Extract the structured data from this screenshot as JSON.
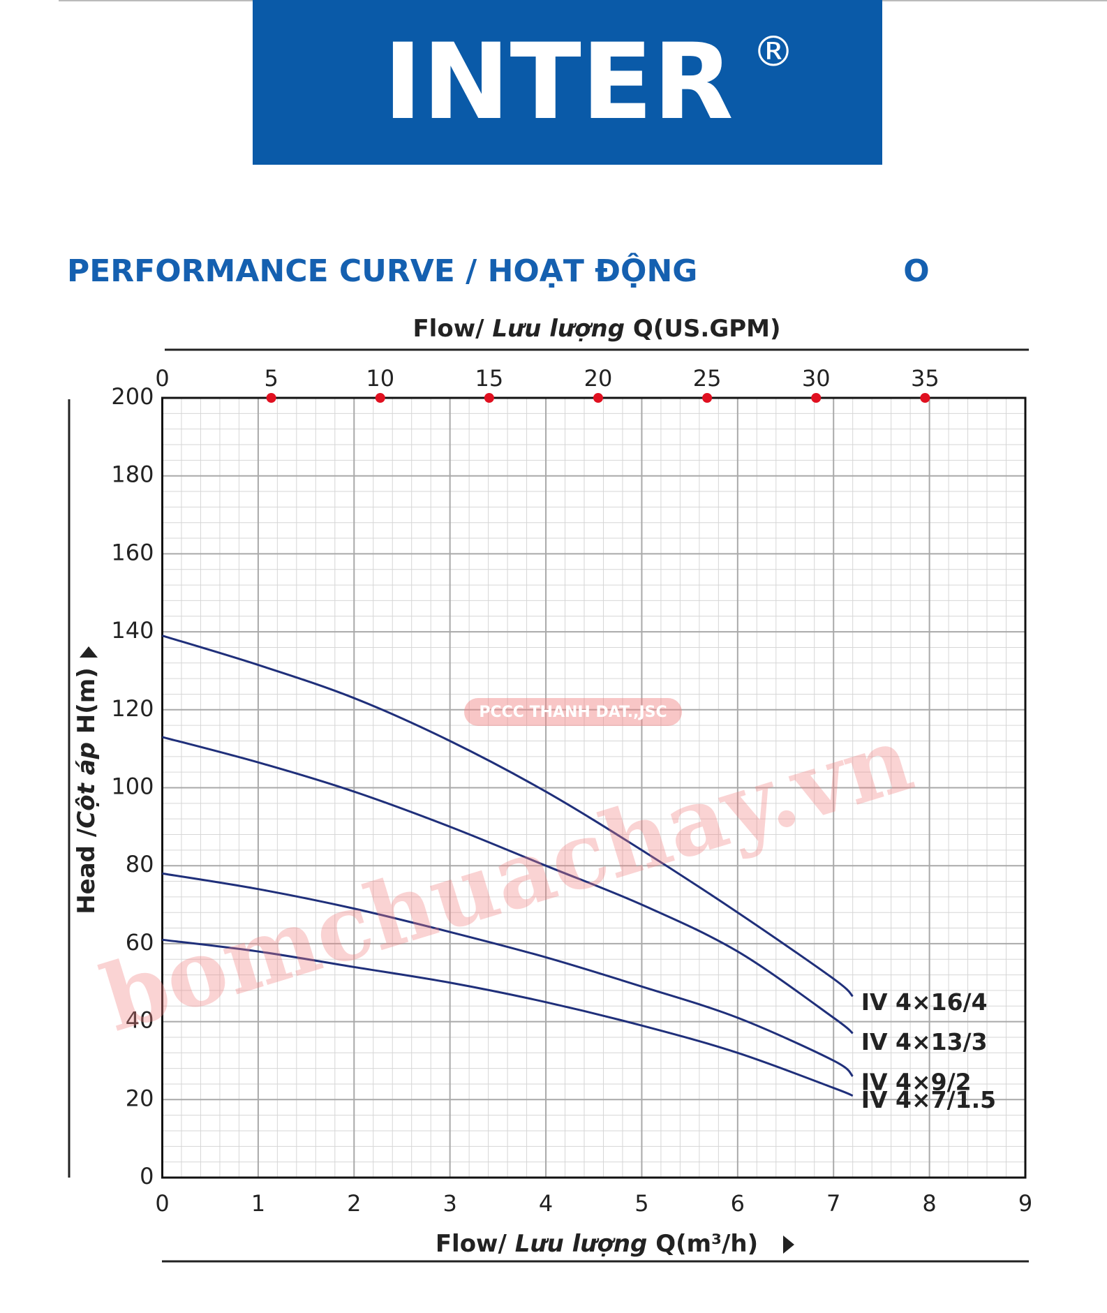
{
  "brand": "INTER",
  "brand_mark": "®",
  "chart_data": {
    "type": "line",
    "title": "PERFORMANCE CURVE  / HOẠT ĐỘNG",
    "title_right": "O",
    "x2label": [
      "Flow/ ",
      "Lưu lượng",
      " Q(US.GPM)"
    ],
    "xlabel": [
      "Flow/ ",
      "Lưu lượng",
      " Q(m³/h)"
    ],
    "ylabel": [
      "Head /",
      "Cột áp",
      " H(m)"
    ],
    "x": [
      0,
      1,
      2,
      3,
      4,
      5,
      6,
      7,
      7.2
    ],
    "series": [
      {
        "name": "IV 4×16/4",
        "color": "#1f2f7a",
        "values": [
          139,
          131.5,
          123,
          112,
          99,
          84,
          68,
          51,
          46.5
        ]
      },
      {
        "name": "IV 4×13/3",
        "color": "#1f2f7a",
        "values": [
          113,
          106.5,
          99,
          90,
          80,
          70,
          58,
          41,
          37
        ]
      },
      {
        "name": "IV 4×9/2",
        "color": "#1f2f7a",
        "values": [
          78,
          74,
          69,
          63,
          56.5,
          49,
          41,
          30,
          26
        ]
      },
      {
        "name": "IV 4×7/1.5",
        "color": "#1f2f7a",
        "values": [
          61,
          58,
          54,
          50,
          45,
          39,
          32,
          23,
          21
        ]
      }
    ],
    "xlim": [
      0,
      9
    ],
    "xticks": [
      0,
      1,
      2,
      3,
      4,
      5,
      6,
      7,
      8,
      9
    ],
    "ylim": [
      0,
      200
    ],
    "yticks": [
      0,
      20,
      40,
      60,
      80,
      100,
      120,
      140,
      160,
      180,
      200
    ],
    "x2lim": [
      0,
      39.6
    ],
    "x2ticks": [
      0,
      5,
      10,
      15,
      20,
      25,
      30,
      35
    ],
    "grid": true,
    "watermarks": [
      "bomchuachay.vn",
      "PCCC THANH DAT.,JSC"
    ]
  }
}
